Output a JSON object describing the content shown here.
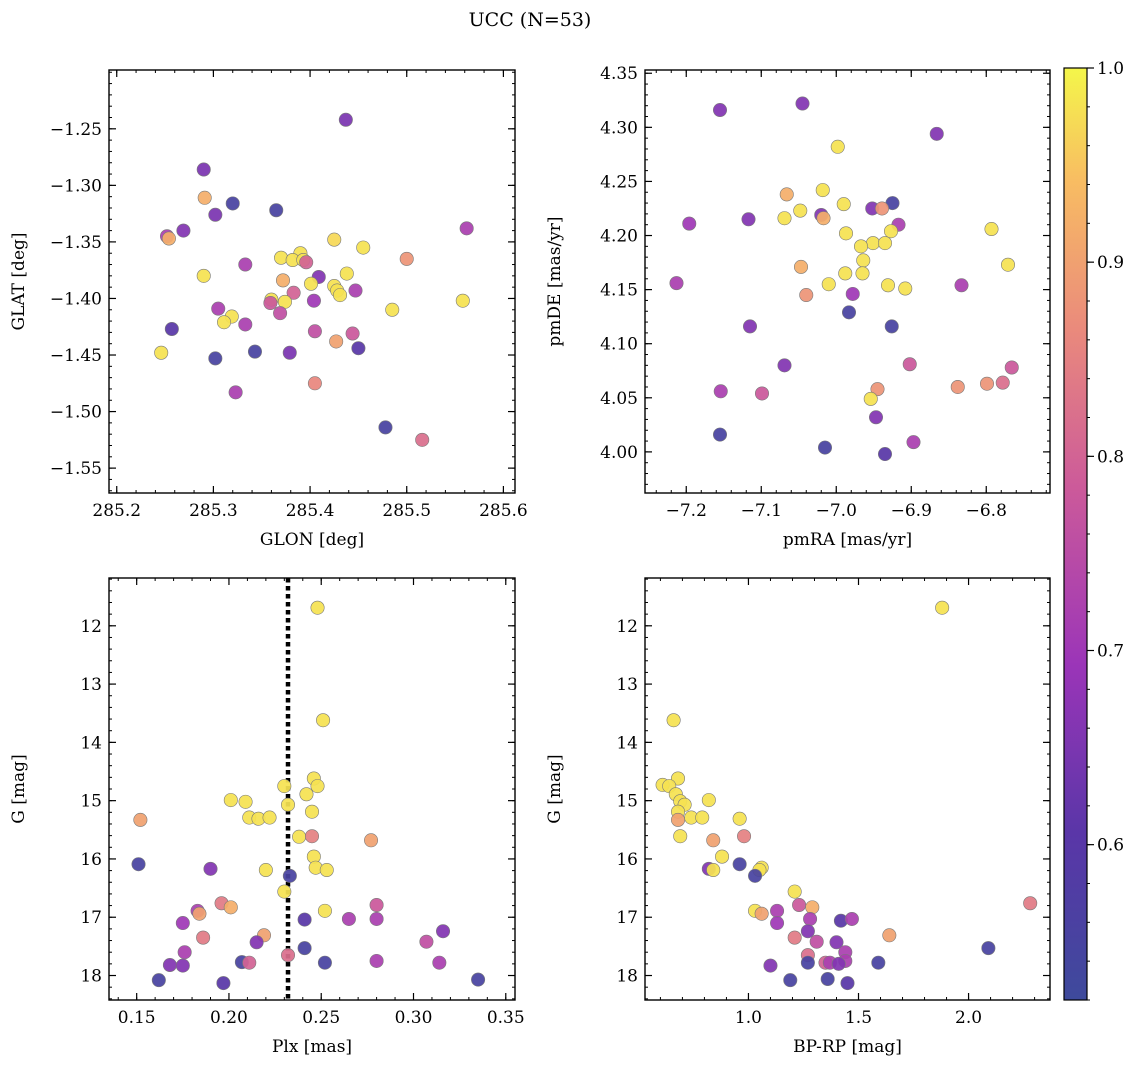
{
  "figure": {
    "title": "UCC (N=53)",
    "colorbar": {
      "min": 0.52,
      "max": 1.0,
      "ticks": [
        0.6,
        0.7,
        0.8,
        0.9,
        1.0
      ],
      "tick_labels": [
        "0.6",
        "0.7",
        "0.8",
        "0.9",
        "1.0"
      ],
      "colormap": "plasma"
    }
  },
  "chart_data": [
    {
      "type": "scatter",
      "xlabel": "GLON [deg]",
      "ylabel": "GLAT [deg]",
      "xlim": [
        285.192,
        285.612
      ],
      "ylim": [
        -1.572,
        -1.198
      ],
      "y_inverted": false,
      "xticks": [
        285.2,
        285.3,
        285.4,
        285.5,
        285.6
      ],
      "xtick_labels": [
        "285.2",
        "285.3",
        "285.4",
        "285.5",
        "285.6"
      ],
      "yticks": [
        -1.55,
        -1.5,
        -1.45,
        -1.4,
        -1.35,
        -1.3,
        -1.25
      ],
      "ytick_labels": [
        "−1.55",
        "−1.50",
        "−1.45",
        "−1.40",
        "−1.35",
        "−1.30",
        "−1.25"
      ],
      "points": [
        [
          285.437,
          -1.242,
          0.65
        ],
        [
          285.29,
          -1.286,
          0.65
        ],
        [
          285.32,
          -1.316,
          0.55
        ],
        [
          285.365,
          -1.322,
          0.55
        ],
        [
          285.302,
          -1.326,
          0.65
        ],
        [
          285.291,
          -1.311,
          0.92
        ],
        [
          285.252,
          -1.345,
          0.72
        ],
        [
          285.254,
          -1.347,
          0.92
        ],
        [
          285.269,
          -1.34,
          0.66
        ],
        [
          285.333,
          -1.37,
          0.72
        ],
        [
          285.562,
          -1.338,
          0.72
        ],
        [
          285.425,
          -1.348,
          0.97
        ],
        [
          285.455,
          -1.355,
          0.98
        ],
        [
          285.39,
          -1.36,
          0.98
        ],
        [
          285.37,
          -1.364,
          0.98
        ],
        [
          285.382,
          -1.366,
          0.98
        ],
        [
          285.393,
          -1.366,
          0.98
        ],
        [
          285.396,
          -1.368,
          0.8
        ],
        [
          285.5,
          -1.365,
          0.88
        ],
        [
          285.409,
          -1.381,
          0.66
        ],
        [
          285.438,
          -1.378,
          0.98
        ],
        [
          285.29,
          -1.38,
          0.98
        ],
        [
          285.372,
          -1.384,
          0.92
        ],
        [
          285.401,
          -1.387,
          0.98
        ],
        [
          285.425,
          -1.389,
          0.98
        ],
        [
          285.428,
          -1.393,
          0.98
        ],
        [
          285.431,
          -1.397,
          0.98
        ],
        [
          285.447,
          -1.393,
          0.72
        ],
        [
          285.383,
          -1.395,
          0.8
        ],
        [
          285.36,
          -1.401,
          0.98
        ],
        [
          285.374,
          -1.403,
          0.98
        ],
        [
          285.359,
          -1.404,
          0.78
        ],
        [
          285.404,
          -1.402,
          0.7
        ],
        [
          285.305,
          -1.409,
          0.72
        ],
        [
          285.485,
          -1.41,
          0.98
        ],
        [
          285.558,
          -1.402,
          0.98
        ],
        [
          285.369,
          -1.413,
          0.76
        ],
        [
          285.319,
          -1.416,
          0.98
        ],
        [
          285.311,
          -1.421,
          0.98
        ],
        [
          285.333,
          -1.423,
          0.72
        ],
        [
          285.257,
          -1.427,
          0.6
        ],
        [
          285.405,
          -1.429,
          0.76
        ],
        [
          285.444,
          -1.431,
          0.78
        ],
        [
          285.427,
          -1.438,
          0.9
        ],
        [
          285.45,
          -1.444,
          0.6
        ],
        [
          285.246,
          -1.448,
          0.98
        ],
        [
          285.343,
          -1.447,
          0.55
        ],
        [
          285.379,
          -1.448,
          0.65
        ],
        [
          285.302,
          -1.453,
          0.55
        ],
        [
          285.405,
          -1.475,
          0.86
        ],
        [
          285.323,
          -1.483,
          0.72
        ],
        [
          285.478,
          -1.514,
          0.55
        ],
        [
          285.516,
          -1.525,
          0.82
        ]
      ]
    },
    {
      "type": "scatter",
      "xlabel": "pmRA [mas/yr]",
      "ylabel": "pmDE [mas/yr]",
      "xlim": [
        -7.255,
        -6.715
      ],
      "ylim": [
        3.962,
        4.353
      ],
      "y_inverted": false,
      "xticks": [
        -7.2,
        -7.1,
        -7.0,
        -6.9,
        -6.8
      ],
      "xtick_labels": [
        "−7.2",
        "−7.1",
        "−7.0",
        "−6.9",
        "−6.8"
      ],
      "yticks": [
        4.0,
        4.05,
        4.1,
        4.15,
        4.2,
        4.25,
        4.3,
        4.35
      ],
      "ytick_labels": [
        "4.00",
        "4.05",
        "4.10",
        "4.15",
        "4.20",
        "4.25",
        "4.30",
        "4.35"
      ],
      "points": [
        [
          -7.045,
          4.322,
          0.66
        ],
        [
          -7.155,
          4.316,
          0.66
        ],
        [
          -6.866,
          4.294,
          0.66
        ],
        [
          -6.998,
          4.282,
          0.98
        ],
        [
          -7.018,
          4.242,
          0.98
        ],
        [
          -7.066,
          4.238,
          0.92
        ],
        [
          -6.925,
          4.23,
          0.55
        ],
        [
          -6.99,
          4.229,
          0.98
        ],
        [
          -7.048,
          4.223,
          0.98
        ],
        [
          -6.952,
          4.225,
          0.66
        ],
        [
          -6.939,
          4.225,
          0.88
        ],
        [
          -7.02,
          4.219,
          0.66
        ],
        [
          -7.017,
          4.216,
          0.92
        ],
        [
          -7.069,
          4.216,
          0.98
        ],
        [
          -7.117,
          4.215,
          0.66
        ],
        [
          -6.917,
          4.21,
          0.72
        ],
        [
          -7.196,
          4.211,
          0.7
        ],
        [
          -6.793,
          4.206,
          0.98
        ],
        [
          -6.927,
          4.204,
          0.98
        ],
        [
          -6.987,
          4.202,
          0.98
        ],
        [
          -6.951,
          4.193,
          0.98
        ],
        [
          -6.935,
          4.193,
          0.98
        ],
        [
          -6.967,
          4.19,
          0.98
        ],
        [
          -6.964,
          4.177,
          0.98
        ],
        [
          -6.771,
          4.173,
          0.98
        ],
        [
          -7.047,
          4.171,
          0.92
        ],
        [
          -6.988,
          4.165,
          0.98
        ],
        [
          -6.965,
          4.165,
          0.98
        ],
        [
          -7.213,
          4.156,
          0.72
        ],
        [
          -7.01,
          4.155,
          0.98
        ],
        [
          -6.931,
          4.154,
          0.98
        ],
        [
          -6.833,
          4.154,
          0.72
        ],
        [
          -6.908,
          4.151,
          0.98
        ],
        [
          -6.978,
          4.146,
          0.7
        ],
        [
          -7.04,
          4.145,
          0.88
        ],
        [
          -6.983,
          4.129,
          0.55
        ],
        [
          -6.926,
          4.116,
          0.55
        ],
        [
          -7.115,
          4.116,
          0.66
        ],
        [
          -7.069,
          4.08,
          0.66
        ],
        [
          -6.902,
          4.081,
          0.78
        ],
        [
          -6.766,
          4.078,
          0.78
        ],
        [
          -6.778,
          4.064,
          0.82
        ],
        [
          -6.799,
          4.063,
          0.88
        ],
        [
          -6.838,
          4.06,
          0.88
        ],
        [
          -6.945,
          4.058,
          0.88
        ],
        [
          -7.154,
          4.056,
          0.72
        ],
        [
          -7.099,
          4.054,
          0.78
        ],
        [
          -6.954,
          4.049,
          0.98
        ],
        [
          -6.947,
          4.032,
          0.66
        ],
        [
          -7.155,
          4.016,
          0.55
        ],
        [
          -6.897,
          4.009,
          0.72
        ],
        [
          -7.015,
          4.004,
          0.55
        ],
        [
          -6.935,
          3.998,
          0.6
        ]
      ]
    },
    {
      "type": "scatter",
      "xlabel": "Plx [mas]",
      "ylabel": "G [mag]",
      "xlim": [
        0.135,
        0.355
      ],
      "ylim": [
        18.42,
        11.18
      ],
      "y_inverted": true,
      "vline": 0.232,
      "xticks": [
        0.15,
        0.2,
        0.25,
        0.3,
        0.35
      ],
      "xtick_labels": [
        "0.15",
        "0.20",
        "0.25",
        "0.30",
        "0.35"
      ],
      "yticks": [
        12,
        13,
        14,
        15,
        16,
        17,
        18
      ],
      "ytick_labels": [
        "12",
        "13",
        "14",
        "15",
        "16",
        "17",
        "18"
      ],
      "points": [
        [
          0.248,
          11.69,
          0.98
        ],
        [
          0.251,
          13.62,
          0.98
        ],
        [
          0.246,
          14.62,
          0.98
        ],
        [
          0.248,
          14.75,
          0.98
        ],
        [
          0.23,
          14.75,
          0.98
        ],
        [
          0.242,
          14.89,
          0.98
        ],
        [
          0.201,
          14.99,
          0.98
        ],
        [
          0.209,
          15.02,
          0.98
        ],
        [
          0.232,
          15.07,
          0.98
        ],
        [
          0.152,
          15.33,
          0.9
        ],
        [
          0.245,
          15.19,
          0.98
        ],
        [
          0.211,
          15.29,
          0.98
        ],
        [
          0.216,
          15.31,
          0.98
        ],
        [
          0.222,
          15.29,
          0.98
        ],
        [
          0.238,
          15.62,
          0.98
        ],
        [
          0.245,
          15.61,
          0.85
        ],
        [
          0.277,
          15.68,
          0.9
        ],
        [
          0.246,
          15.96,
          0.98
        ],
        [
          0.151,
          16.09,
          0.55
        ],
        [
          0.247,
          16.15,
          0.98
        ],
        [
          0.253,
          16.19,
          0.98
        ],
        [
          0.19,
          16.17,
          0.66
        ],
        [
          0.22,
          16.19,
          0.98
        ],
        [
          0.233,
          16.29,
          0.55
        ],
        [
          0.23,
          16.56,
          0.98
        ],
        [
          0.196,
          16.76,
          0.84
        ],
        [
          0.201,
          16.83,
          0.92
        ],
        [
          0.28,
          16.79,
          0.78
        ],
        [
          0.183,
          16.89,
          0.72
        ],
        [
          0.252,
          16.89,
          0.98
        ],
        [
          0.184,
          16.94,
          0.9
        ],
        [
          0.241,
          17.04,
          0.6
        ],
        [
          0.265,
          17.03,
          0.72
        ],
        [
          0.28,
          17.03,
          0.72
        ],
        [
          0.175,
          17.1,
          0.7
        ],
        [
          0.316,
          17.24,
          0.66
        ],
        [
          0.219,
          17.31,
          0.9
        ],
        [
          0.186,
          17.35,
          0.84
        ],
        [
          0.215,
          17.43,
          0.66
        ],
        [
          0.307,
          17.42,
          0.76
        ],
        [
          0.241,
          17.53,
          0.55
        ],
        [
          0.176,
          17.6,
          0.72
        ],
        [
          0.232,
          17.65,
          0.82
        ],
        [
          0.207,
          17.77,
          0.55
        ],
        [
          0.211,
          17.78,
          0.8
        ],
        [
          0.252,
          17.78,
          0.55
        ],
        [
          0.28,
          17.75,
          0.72
        ],
        [
          0.314,
          17.78,
          0.72
        ],
        [
          0.168,
          17.82,
          0.66
        ],
        [
          0.175,
          17.83,
          0.66
        ],
        [
          0.162,
          18.08,
          0.55
        ],
        [
          0.197,
          18.13,
          0.6
        ],
        [
          0.335,
          18.07,
          0.55
        ]
      ]
    },
    {
      "type": "scatter",
      "xlabel": "BP-RP [mag]",
      "ylabel": "G [mag]",
      "xlim": [
        0.53,
        2.37
      ],
      "ylim": [
        18.42,
        11.18
      ],
      "y_inverted": true,
      "xticks": [
        1.0,
        1.5,
        2.0
      ],
      "xtick_labels": [
        "1.0",
        "1.5",
        "2.0"
      ],
      "yticks": [
        12,
        13,
        14,
        15,
        16,
        17,
        18
      ],
      "ytick_labels": [
        "12",
        "13",
        "14",
        "15",
        "16",
        "17",
        "18"
      ],
      "points": [
        [
          1.88,
          11.69,
          0.98
        ],
        [
          0.66,
          13.62,
          0.98
        ],
        [
          0.68,
          14.62,
          0.98
        ],
        [
          0.61,
          14.73,
          0.98
        ],
        [
          0.64,
          14.75,
          0.98
        ],
        [
          0.67,
          14.89,
          0.98
        ],
        [
          0.69,
          15.01,
          0.98
        ],
        [
          0.71,
          15.07,
          0.98
        ],
        [
          0.82,
          14.99,
          0.98
        ],
        [
          0.74,
          15.29,
          0.98
        ],
        [
          0.79,
          15.29,
          0.98
        ],
        [
          0.68,
          15.19,
          0.98
        ],
        [
          0.68,
          15.33,
          0.9
        ],
        [
          0.96,
          15.31,
          0.98
        ],
        [
          0.69,
          15.61,
          0.98
        ],
        [
          0.98,
          15.61,
          0.85
        ],
        [
          0.84,
          15.68,
          0.9
        ],
        [
          0.88,
          15.96,
          0.98
        ],
        [
          0.96,
          16.09,
          0.55
        ],
        [
          1.06,
          16.15,
          0.98
        ],
        [
          1.05,
          16.19,
          0.98
        ],
        [
          0.82,
          16.17,
          0.66
        ],
        [
          0.84,
          16.19,
          0.98
        ],
        [
          1.03,
          16.29,
          0.55
        ],
        [
          1.21,
          16.56,
          0.98
        ],
        [
          1.23,
          16.79,
          0.78
        ],
        [
          1.29,
          16.83,
          0.92
        ],
        [
          2.28,
          16.76,
          0.84
        ],
        [
          1.03,
          16.89,
          0.98
        ],
        [
          1.06,
          16.94,
          0.9
        ],
        [
          1.13,
          16.89,
          0.72
        ],
        [
          1.28,
          17.03,
          0.72
        ],
        [
          1.42,
          17.06,
          0.6
        ],
        [
          1.47,
          17.03,
          0.72
        ],
        [
          1.13,
          17.1,
          0.7
        ],
        [
          1.27,
          17.24,
          0.66
        ],
        [
          1.64,
          17.31,
          0.9
        ],
        [
          1.21,
          17.35,
          0.84
        ],
        [
          1.31,
          17.42,
          0.76
        ],
        [
          1.4,
          17.43,
          0.66
        ],
        [
          1.44,
          17.6,
          0.72
        ],
        [
          1.27,
          17.65,
          0.82
        ],
        [
          2.09,
          17.53,
          0.55
        ],
        [
          1.44,
          17.75,
          0.72
        ],
        [
          1.35,
          17.78,
          0.8
        ],
        [
          1.37,
          17.78,
          0.72
        ],
        [
          1.27,
          17.78,
          0.55
        ],
        [
          1.41,
          17.8,
          0.66
        ],
        [
          1.59,
          17.78,
          0.55
        ],
        [
          1.1,
          17.83,
          0.66
        ],
        [
          1.19,
          18.08,
          0.55
        ],
        [
          1.45,
          18.13,
          0.6
        ],
        [
          1.36,
          18.06,
          0.55
        ]
      ]
    }
  ]
}
